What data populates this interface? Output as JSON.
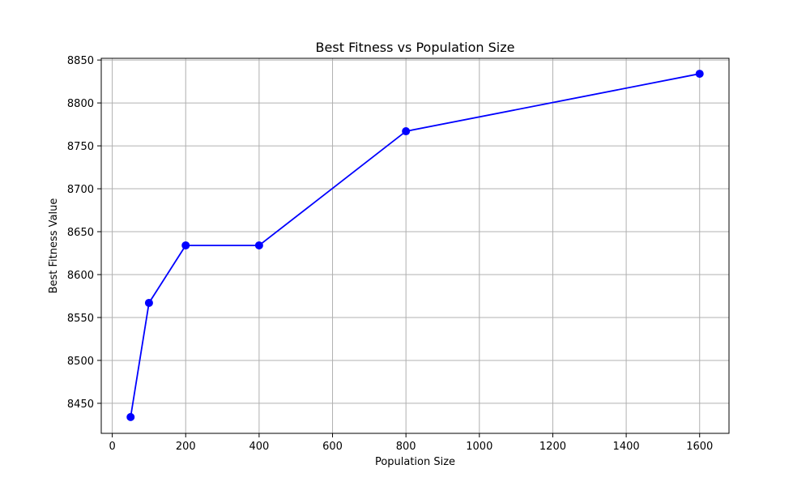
{
  "chart_data": {
    "type": "line",
    "title": "Best Fitness vs Population Size",
    "xlabel": "Population Size",
    "ylabel": "Best Fitness Value",
    "xlim": [
      -30,
      1680
    ],
    "ylim": [
      8415,
      8852
    ],
    "xticks": [
      0,
      200,
      400,
      600,
      800,
      1000,
      1200,
      1400,
      1600
    ],
    "yticks": [
      8450,
      8500,
      8550,
      8600,
      8650,
      8700,
      8750,
      8800,
      8850
    ],
    "grid": true,
    "series": [
      {
        "name": "Best Fitness",
        "color": "#0000ff",
        "marker": "circle",
        "x": [
          50,
          100,
          200,
          400,
          800,
          1600
        ],
        "y": [
          8434,
          8567,
          8634,
          8634,
          8767,
          8834
        ]
      }
    ]
  }
}
